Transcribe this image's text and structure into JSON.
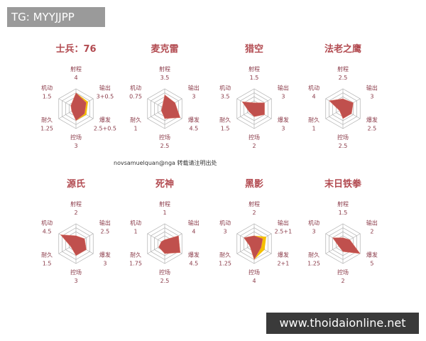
{
  "banner": "TG: MYYJJPP",
  "watermark": "www.thoidaionline.net",
  "credit": "novsamuelquan@nga 转载请注明出处",
  "colors": {
    "fill": "#c0504d",
    "bonus": "#f5c000",
    "grid": "#b0b0b0",
    "text": "#8a3a48",
    "title": "#b24a50"
  },
  "chart_data": [
    {
      "type": "radar",
      "title": "士兵：76",
      "axes": [
        "射程",
        "输出",
        "爆发",
        "控场",
        "耐久",
        "机动"
      ],
      "labels": [
        "4",
        "3+0.5",
        "2.5+0.5",
        "3",
        "1.25",
        "1.5"
      ],
      "values": [
        4,
        3,
        2.5,
        3,
        1.25,
        1.5
      ],
      "bonus": [
        0,
        0.5,
        0.5,
        0,
        0,
        0
      ],
      "range": [
        0,
        5
      ]
    },
    {
      "type": "radar",
      "title": "麦克雷",
      "axes": [
        "射程",
        "输出",
        "爆发",
        "控场",
        "耐久",
        "机动"
      ],
      "labels": [
        "3.5",
        "3",
        "4.5",
        "2.5",
        "1",
        "0.75"
      ],
      "values": [
        3.5,
        3,
        4.5,
        2.5,
        1,
        0.75
      ],
      "bonus": [
        0,
        0,
        0,
        0,
        0,
        0
      ],
      "range": [
        0,
        5
      ]
    },
    {
      "type": "radar",
      "title": "猎空",
      "axes": [
        "射程",
        "输出",
        "爆发",
        "控场",
        "耐久",
        "机动"
      ],
      "labels": [
        "1.5",
        "3",
        "3",
        "2",
        "1.5",
        "3.5"
      ],
      "values": [
        1.5,
        3,
        3,
        2,
        1.5,
        3.5
      ],
      "bonus": [
        0,
        0,
        0,
        0,
        0,
        0
      ],
      "range": [
        0,
        5
      ]
    },
    {
      "type": "radar",
      "title": "法老之鹰",
      "axes": [
        "射程",
        "输出",
        "爆发",
        "控场",
        "耐久",
        "机动"
      ],
      "labels": [
        "2.5",
        "3",
        "2.5",
        "2.5",
        "1",
        "4"
      ],
      "values": [
        2.5,
        3,
        2.5,
        2.5,
        1,
        4
      ],
      "bonus": [
        0,
        0,
        0,
        0,
        0,
        0
      ],
      "range": [
        0,
        5
      ]
    },
    {
      "type": "radar",
      "title": "源氏",
      "axes": [
        "射程",
        "输出",
        "爆发",
        "控场",
        "耐久",
        "机动"
      ],
      "labels": [
        "2",
        "2.5",
        "3",
        "3",
        "1.5",
        "4.5"
      ],
      "values": [
        2,
        2.5,
        3,
        3,
        1.5,
        4.5
      ],
      "bonus": [
        0,
        0,
        0,
        0,
        0,
        0
      ],
      "range": [
        0,
        5
      ]
    },
    {
      "type": "radar",
      "title": "死神",
      "axes": [
        "射程",
        "输出",
        "爆发",
        "控场",
        "耐久",
        "机动"
      ],
      "labels": [
        "1",
        "4",
        "4.5",
        "2.5",
        "1.75",
        "1"
      ],
      "values": [
        1,
        4,
        4.5,
        2.5,
        1.75,
        1
      ],
      "bonus": [
        0,
        0,
        0,
        0,
        0,
        0
      ],
      "range": [
        0,
        5
      ]
    },
    {
      "type": "radar",
      "title": "黑影",
      "axes": [
        "射程",
        "输出",
        "爆发",
        "控场",
        "耐久",
        "机动"
      ],
      "labels": [
        "2",
        "2.5+1",
        "2+1",
        "4",
        "1.25",
        "3"
      ],
      "values": [
        2,
        2.5,
        2,
        4,
        1.25,
        3
      ],
      "bonus": [
        0,
        1,
        1,
        0,
        0,
        0
      ],
      "range": [
        0,
        5
      ]
    },
    {
      "type": "radar",
      "title": "末日铁拳",
      "axes": [
        "射程",
        "输出",
        "爆发",
        "控场",
        "耐久",
        "机动"
      ],
      "labels": [
        "1.5",
        "2",
        "5",
        "2",
        "1.25",
        "3"
      ],
      "values": [
        1.5,
        2,
        5,
        2,
        1.25,
        3
      ],
      "bonus": [
        0,
        0,
        0,
        0,
        0,
        0
      ],
      "range": [
        0,
        5
      ]
    }
  ]
}
